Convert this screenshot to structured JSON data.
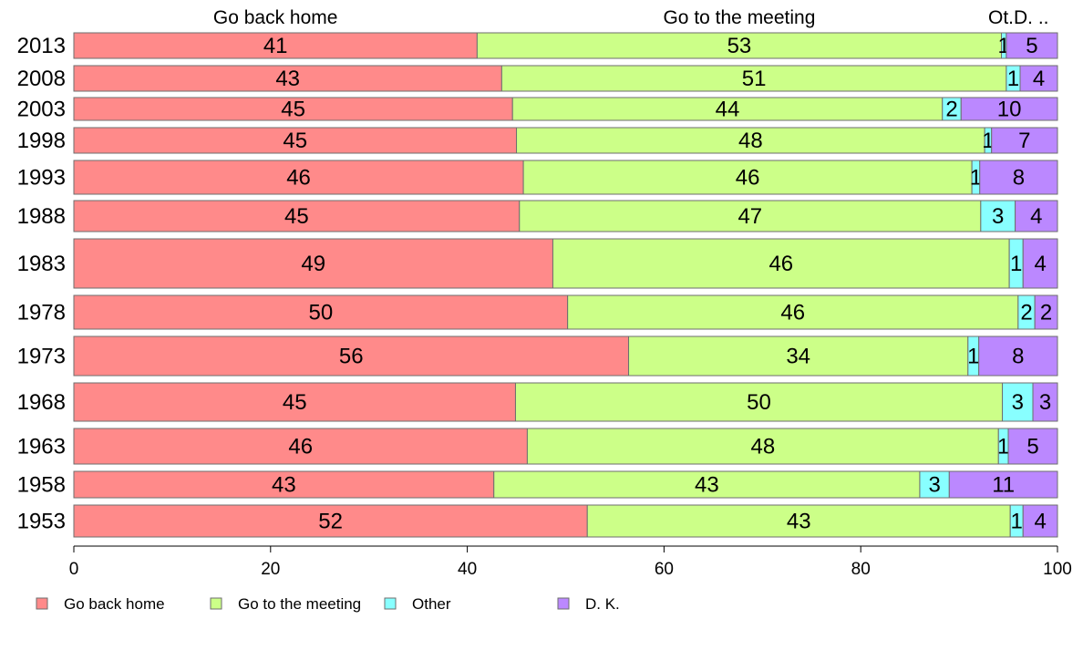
{
  "chart_data": {
    "type": "bar",
    "orientation": "horizontal",
    "stacked": true,
    "column_headers": [
      {
        "label": "Go back home",
        "series_index": 0
      },
      {
        "label": "Go to the meeting",
        "series_index": 1
      },
      {
        "label": "Ot.",
        "series_index": 2
      },
      {
        "label": "D. ..",
        "series_index": 3
      }
    ],
    "categories": [
      "2013",
      "2008",
      "2003",
      "1998",
      "1993",
      "1988",
      "1983",
      "1978",
      "1973",
      "1968",
      "1963",
      "1958",
      "1953"
    ],
    "series": [
      {
        "name": "Go back home",
        "color": "#ff8a8a",
        "values": [
          41,
          43,
          45,
          45,
          46,
          45,
          49,
          50,
          56,
          45,
          46,
          43,
          52
        ],
        "positions": [
          41,
          43.5,
          44.6,
          45,
          45.7,
          45.3,
          48.7,
          50.2,
          56.4,
          44.9,
          46.1,
          42.7,
          52.2
        ]
      },
      {
        "name": "Go to the meeting",
        "color": "#ccff88",
        "values": [
          53,
          51,
          44,
          48,
          46,
          47,
          46,
          46,
          34,
          50,
          48,
          43,
          43
        ],
        "positions": [
          53.3,
          51.3,
          43.7,
          47.6,
          45.6,
          46.9,
          46.4,
          45.8,
          34.5,
          49.5,
          47.9,
          43.3,
          43.0
        ]
      },
      {
        "name": "Other",
        "color": "#88ffff",
        "values": [
          1,
          1,
          2,
          1,
          1,
          3,
          1,
          2,
          1,
          3,
          1,
          3,
          1
        ],
        "positions": [
          0.5,
          1.4,
          1.9,
          0.7,
          0.8,
          3.5,
          1.4,
          1.7,
          1.1,
          3.1,
          1.0,
          3.0,
          1.3
        ]
      },
      {
        "name": "D. K.",
        "color": "#bb88ff",
        "values": [
          5,
          4,
          10,
          7,
          8,
          4,
          4,
          2,
          8,
          3,
          5,
          11,
          4
        ],
        "positions": [
          5.2,
          3.8,
          9.8,
          6.7,
          7.9,
          4.3,
          3.5,
          2.3,
          8.0,
          2.5,
          5.0,
          11.0,
          3.5
        ]
      }
    ],
    "xlim": [
      0,
      100
    ],
    "xticks": [
      "0",
      "20",
      "40",
      "60",
      "80",
      "100"
    ],
    "grid": false,
    "legend_position": "bottom-left",
    "legend": [
      "Go back home",
      "Go to the meeting",
      "Other",
      "D. K."
    ]
  }
}
